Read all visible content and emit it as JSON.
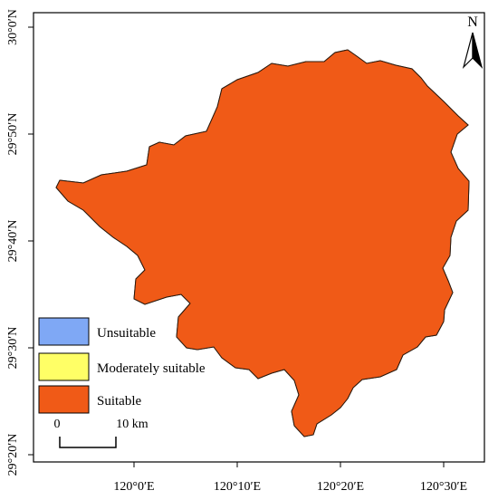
{
  "map": {
    "axes": {
      "x_ticks": [
        "120°0′E",
        "120°10′E",
        "120°20′E",
        "120°30′E"
      ],
      "y_ticks": [
        "30°0′N",
        "29°50′N",
        "29°40′N",
        "29°30′N",
        "29°20′N"
      ]
    },
    "legend": {
      "items": [
        {
          "label": "Unsuitable",
          "color": "#7fa8f5"
        },
        {
          "label": "Moderately suitable",
          "color": "#ffff66"
        },
        {
          "label": "Suitable",
          "color": "#f05a17"
        }
      ]
    },
    "scale_bar": {
      "start": "0",
      "end": "10 km"
    },
    "north_arrow": {
      "label": "N"
    },
    "colors": {
      "suitable": "#f05a17",
      "unsuitable": "#7fa8f5",
      "moderately_suitable": "#ffff66",
      "boundary": "#2b1a0e",
      "frame": "#000000"
    }
  }
}
